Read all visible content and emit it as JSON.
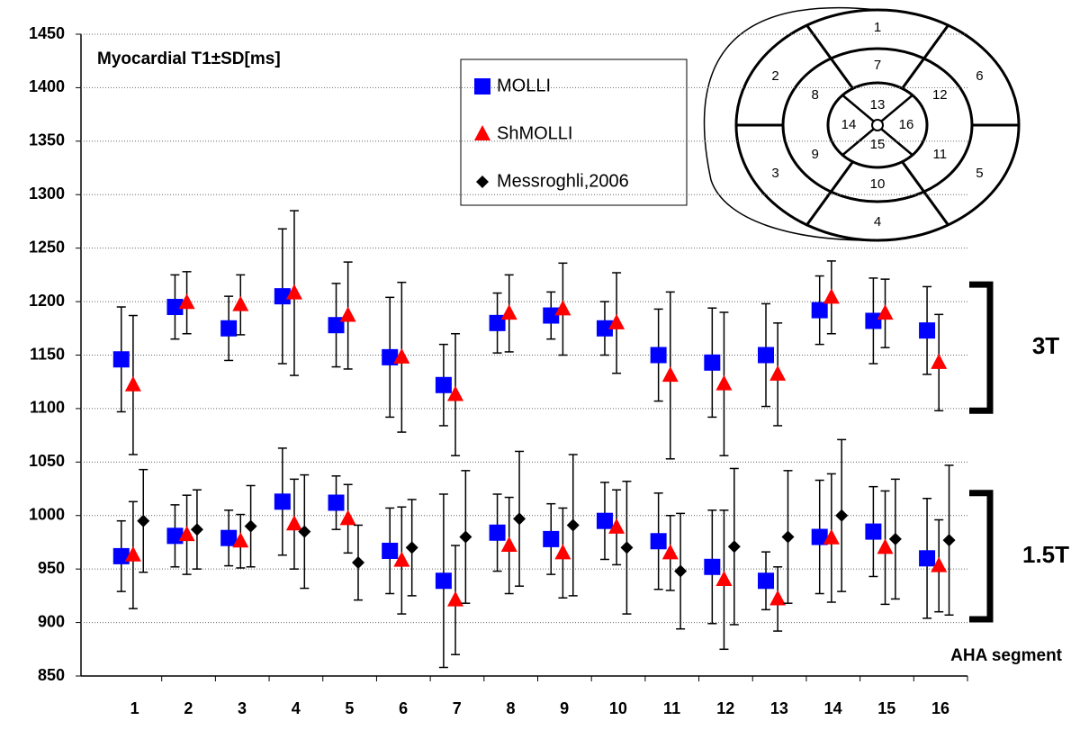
{
  "chart_data": {
    "type": "errorbar",
    "title": "Myocardial T1±SD[ms]",
    "x_label": "AHA segment",
    "x": [
      1,
      2,
      3,
      4,
      5,
      6,
      7,
      8,
      9,
      10,
      11,
      12,
      13,
      14,
      15,
      16
    ],
    "xlim": [
      0,
      16.5
    ],
    "xticks": [
      1,
      2,
      3,
      4,
      5,
      6,
      7,
      8,
      9,
      10,
      11,
      12,
      13,
      14,
      15,
      16
    ],
    "ylim": [
      850,
      1450
    ],
    "yticks": [
      850,
      900,
      950,
      1000,
      1050,
      1100,
      1150,
      1200,
      1250,
      1300,
      1350,
      1400,
      1450
    ],
    "grid": true,
    "series": [
      {
        "name": "MOLLI",
        "color": "#0000ff",
        "marker": "square",
        "groups": [
          {
            "values": [
              1146,
              1195,
              1175,
              1205,
              1178,
              1148,
              1122,
              1180,
              1187,
              1175,
              1150,
              1143,
              1150,
              1192,
              1182,
              1173
            ],
            "errors": [
              49,
              30,
              30,
              63,
              39,
              56,
              38,
              28,
              22,
              25,
              43,
              51,
              48,
              32,
              40,
              41
            ]
          },
          {
            "values": [
              962,
              981,
              979,
              1013,
              1012,
              967,
              939,
              984,
              978,
              995,
              976,
              952,
              939,
              980,
              985,
              960
            ],
            "errors": [
              33,
              29,
              26,
              50,
              25,
              40,
              81,
              36,
              33,
              36,
              45,
              53,
              27,
              53,
              42,
              56
            ]
          }
        ]
      },
      {
        "name": "ShMOLLI",
        "color": "#ff0000",
        "marker": "triangle",
        "groups": [
          {
            "values": [
              1122,
              1199,
              1197,
              1208,
              1187,
              1148,
              1113,
              1189,
              1193,
              1180,
              1131,
              1123,
              1132,
              1204,
              1189,
              1143
            ],
            "errors": [
              65,
              29,
              28,
              77,
              50,
              70,
              57,
              36,
              43,
              47,
              78,
              67,
              48,
              34,
              32,
              45
            ]
          },
          {
            "values": [
              963,
              982,
              976,
              992,
              997,
              958,
              921,
              972,
              965,
              989,
              965,
              940,
              922,
              979,
              970,
              953
            ],
            "errors": [
              50,
              37,
              25,
              42,
              32,
              50,
              51,
              45,
              42,
              35,
              35,
              65,
              30,
              60,
              53,
              43
            ]
          }
        ]
      },
      {
        "name": "Messroghli,2006",
        "color": "#000000",
        "marker": "diamond",
        "groups": [
          {
            "values": [
              995,
              987,
              990,
              985,
              956,
              970,
              980,
              997,
              991,
              970,
              948,
              971,
              980,
              1000,
              978,
              977
            ],
            "errors": [
              48,
              37,
              38,
              53,
              35,
              45,
              62,
              63,
              66,
              62,
              54,
              73,
              62,
              71,
              56,
              70
            ]
          }
        ]
      }
    ],
    "annotations": [
      {
        "text": "3T",
        "range": [
          1098,
          1216
        ]
      },
      {
        "text": "1.5T",
        "range": [
          903,
          1021
        ]
      }
    ],
    "inset": {
      "labels": [
        "1",
        "2",
        "3",
        "4",
        "5",
        "6",
        "7",
        "8",
        "9",
        "10",
        "11",
        "12",
        "13",
        "14",
        "15",
        "16"
      ]
    }
  }
}
